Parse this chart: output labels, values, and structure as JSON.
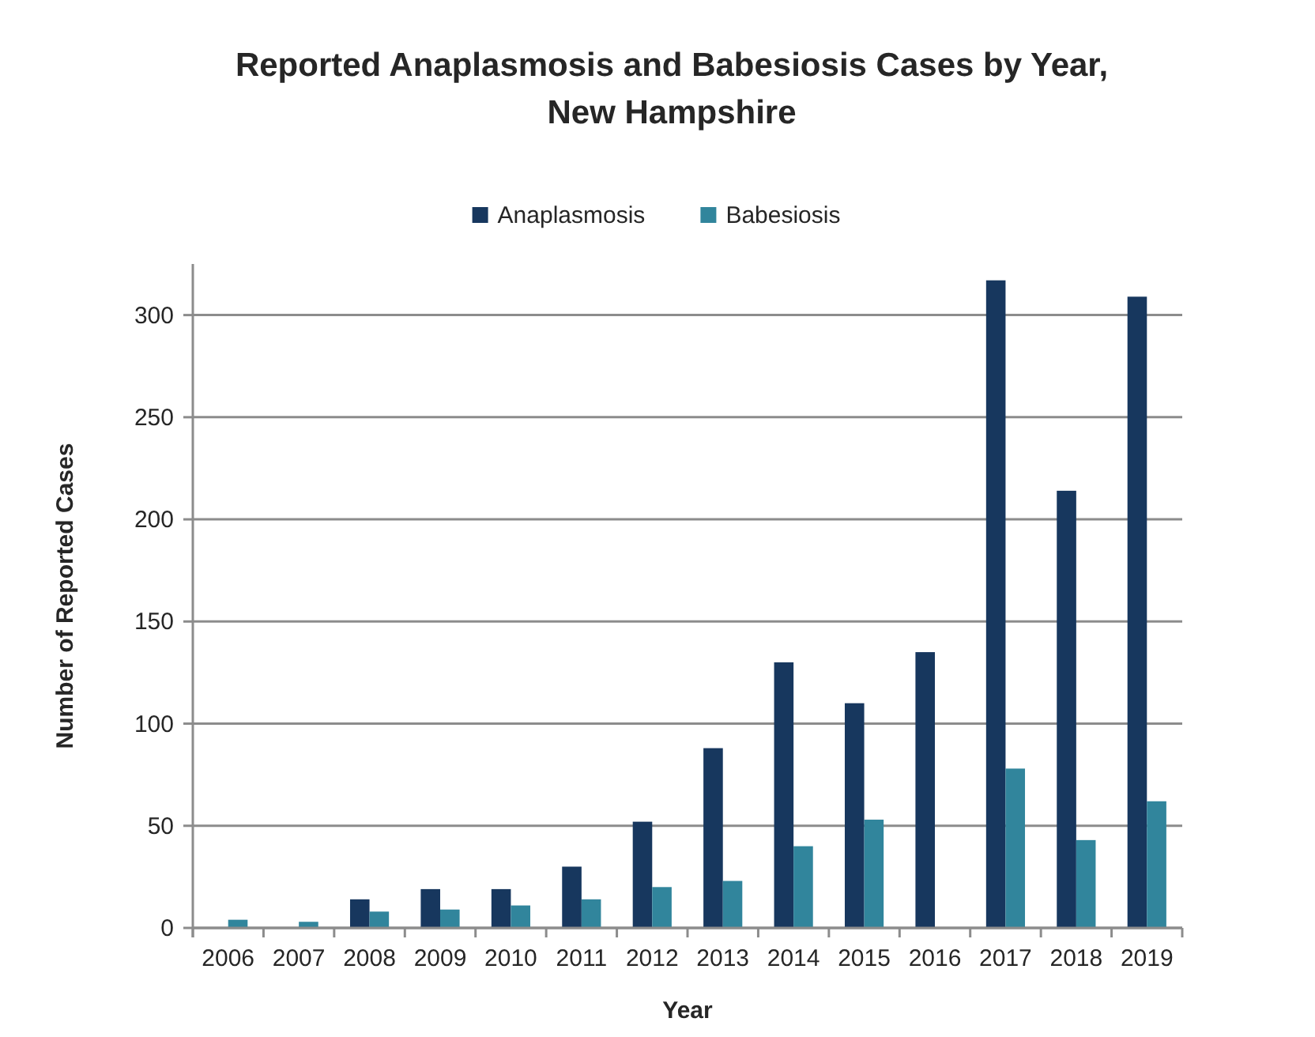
{
  "chart_data": {
    "type": "bar",
    "title": "Reported Anaplasmosis and Babesiosis Cases by Year, New Hampshire",
    "xlabel": "Year",
    "ylabel": "Number of Reported Cases",
    "categories": [
      "2006",
      "2007",
      "2008",
      "2009",
      "2010",
      "2011",
      "2012",
      "2013",
      "2014",
      "2015",
      "2016",
      "2017",
      "2018",
      "2019"
    ],
    "series": [
      {
        "name": "Anaplasmosis",
        "color": "#17375e",
        "values": [
          null,
          null,
          14,
          19,
          19,
          30,
          52,
          88,
          130,
          110,
          135,
          317,
          214,
          309
        ]
      },
      {
        "name": "Babesiosis",
        "color": "#31859c",
        "values": [
          4,
          3,
          8,
          9,
          11,
          14,
          20,
          23,
          40,
          53,
          null,
          78,
          43,
          62
        ]
      }
    ],
    "ylim": [
      0,
      325
    ],
    "yticks": [
      0,
      50,
      100,
      150,
      200,
      250,
      300
    ],
    "grid": "y",
    "legend": "top"
  }
}
